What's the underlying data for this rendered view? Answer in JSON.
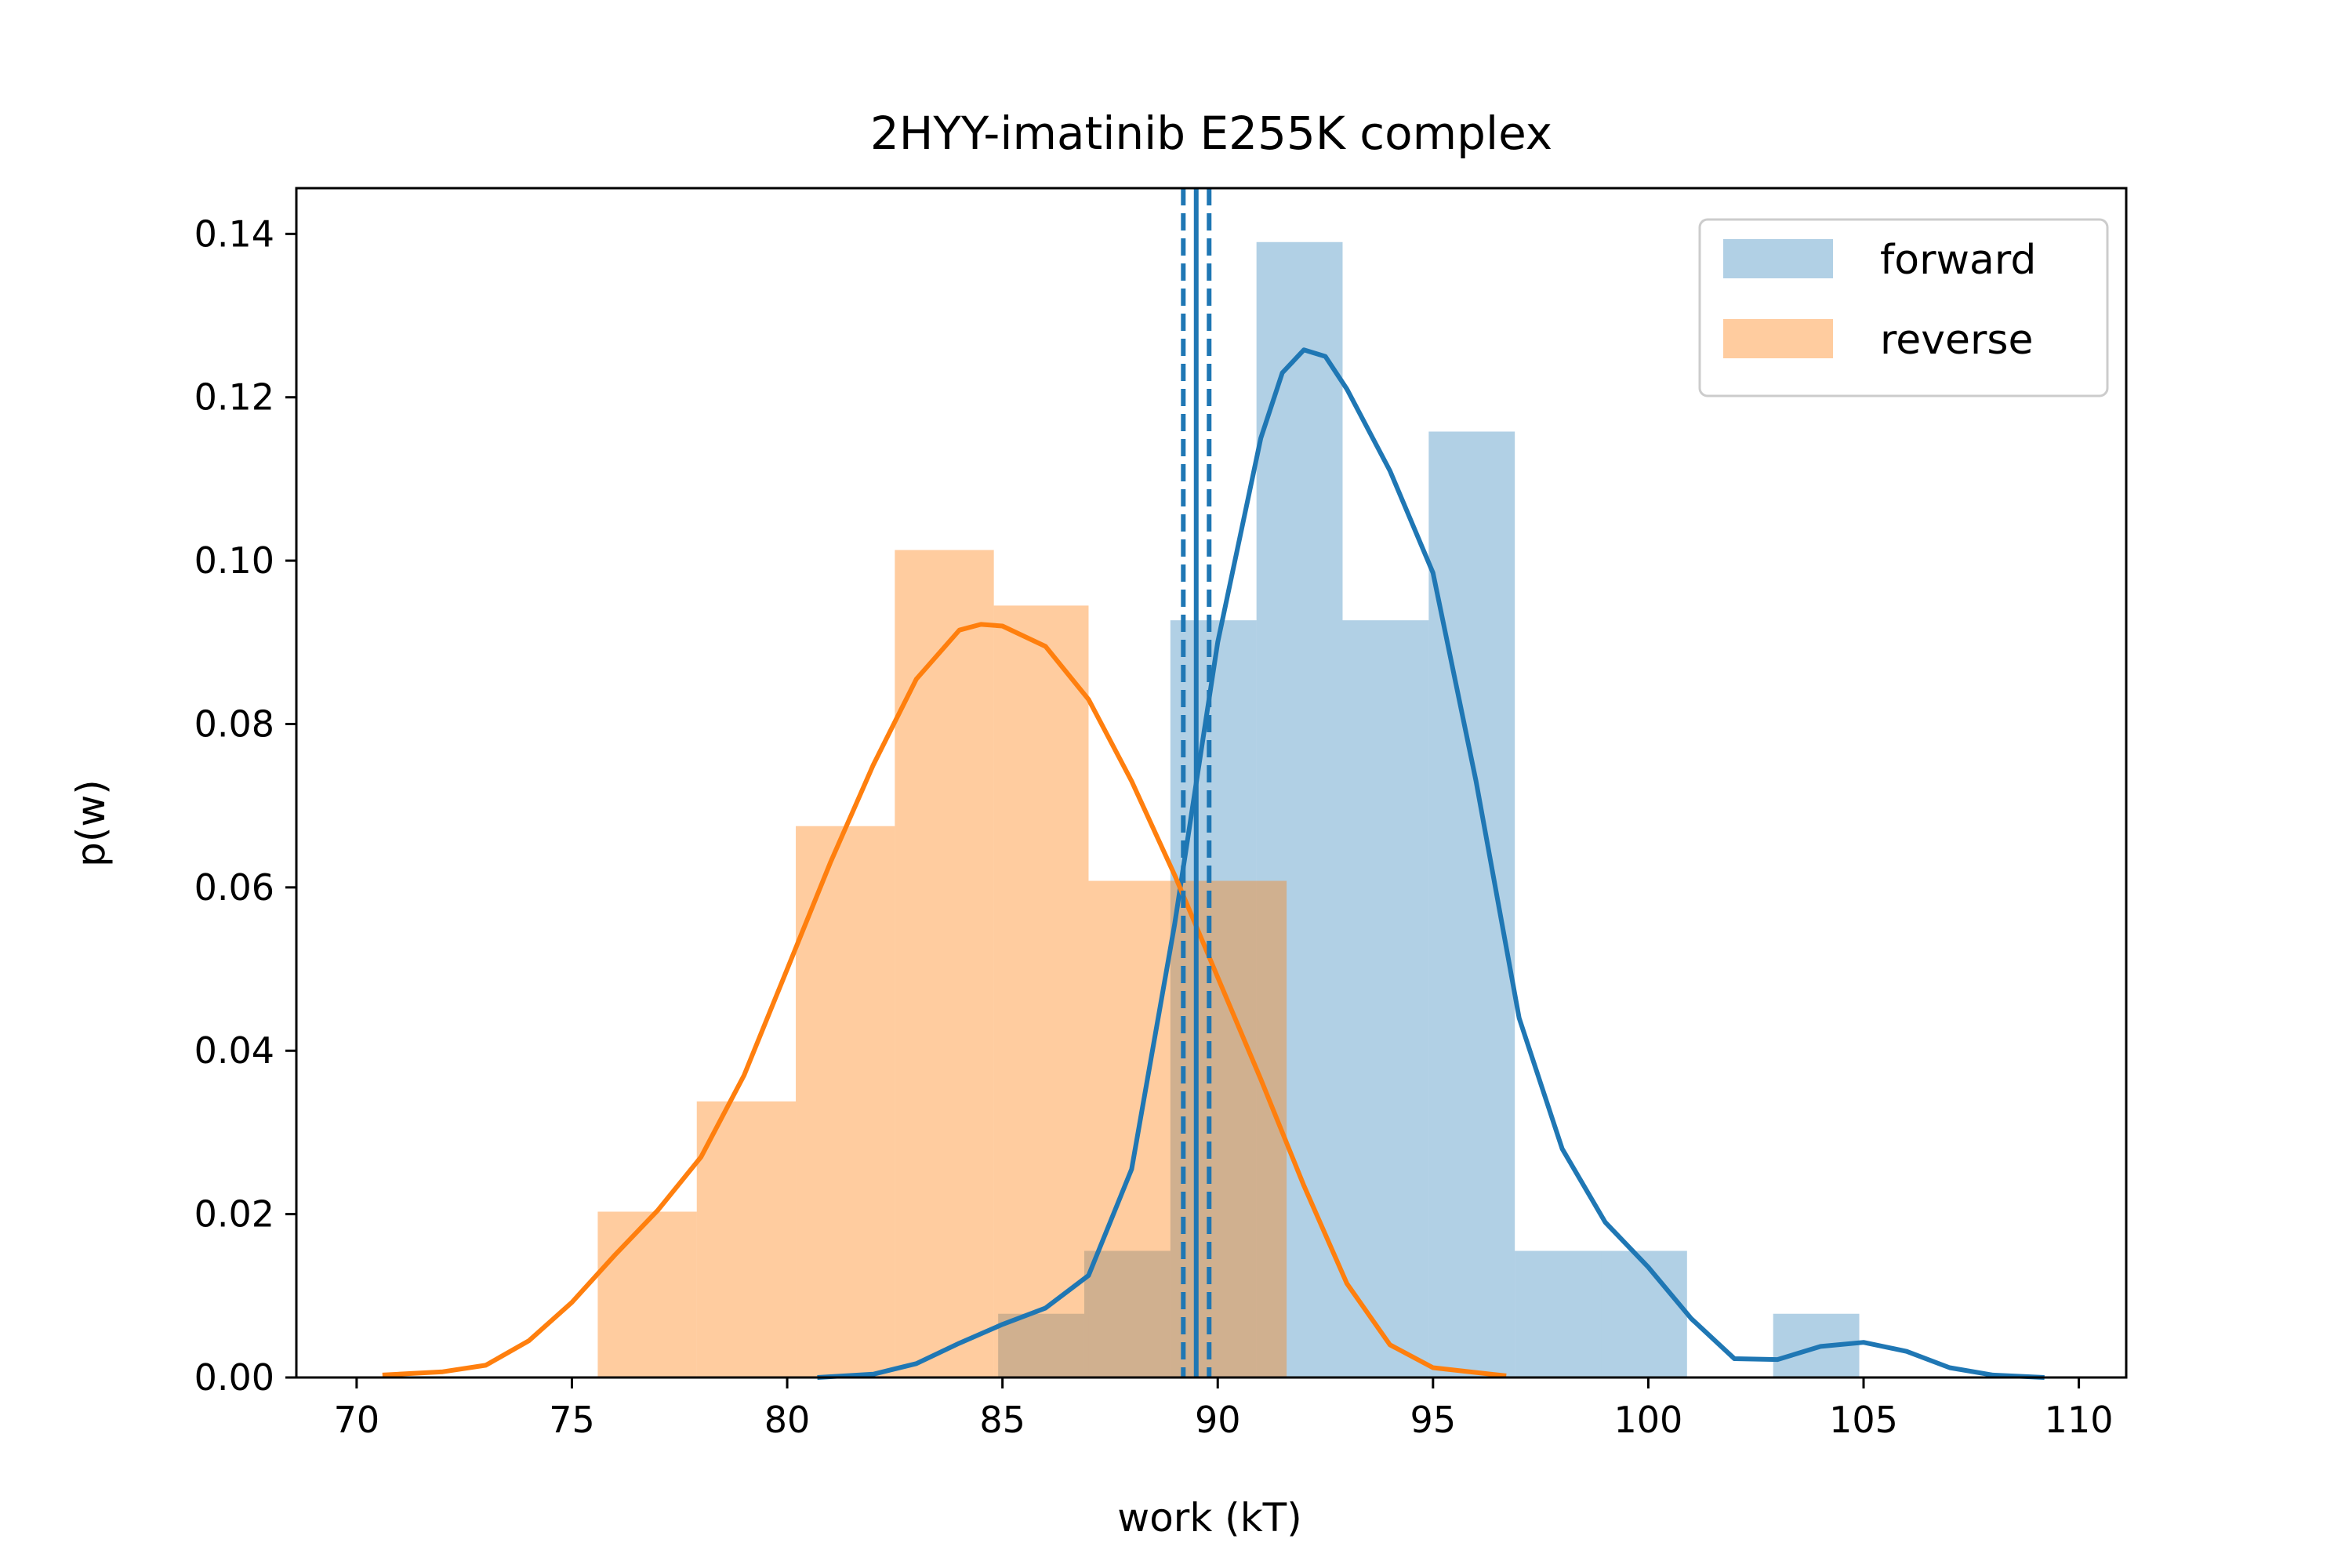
{
  "chart_data": {
    "type": "histogram_kde",
    "title": "2HYY-imatinib E255K complex",
    "xlabel": "work (kT)",
    "ylabel": "p(w)",
    "xlim": [
      68.6,
      111.1
    ],
    "ylim": [
      0,
      0.1456
    ],
    "xticks": [
      70,
      75,
      80,
      85,
      90,
      95,
      100,
      105,
      110
    ],
    "xtick_labels": [
      "70",
      "75",
      "80",
      "85",
      "90",
      "95",
      "100",
      "105",
      "110"
    ],
    "yticks": [
      0,
      0.02,
      0.04,
      0.06,
      0.08,
      0.1,
      0.12,
      0.14
    ],
    "ytick_labels": [
      "0.00",
      "0.02",
      "0.04",
      "0.06",
      "0.08",
      "0.10",
      "0.12",
      "0.14"
    ],
    "grid": false,
    "legend_position": "top-right",
    "series": [
      {
        "name": "forward",
        "color": "#1f77b4",
        "hist_alpha": 0.35,
        "bins": [
          {
            "x0": 84.9,
            "x1": 86.9,
            "value": 0.0078
          },
          {
            "x0": 86.9,
            "x1": 88.9,
            "value": 0.0155
          },
          {
            "x0": 88.9,
            "x1": 90.9,
            "value": 0.0927
          },
          {
            "x0": 90.9,
            "x1": 92.9,
            "value": 0.139
          },
          {
            "x0": 92.9,
            "x1": 94.9,
            "value": 0.0927
          },
          {
            "x0": 94.9,
            "x1": 96.9,
            "value": 0.1158
          },
          {
            "x0": 96.9,
            "x1": 98.9,
            "value": 0.0155
          },
          {
            "x0": 98.9,
            "x1": 100.9,
            "value": 0.0155
          },
          {
            "x0": 100.9,
            "x1": 102.9,
            "value": 0.0
          },
          {
            "x0": 102.9,
            "x1": 104.9,
            "value": 0.0078
          }
        ],
        "kde": [
          [
            80.7,
            0.0
          ],
          [
            82.0,
            0.0004
          ],
          [
            83.0,
            0.0017
          ],
          [
            84.0,
            0.0042
          ],
          [
            85.0,
            0.0065
          ],
          [
            86.0,
            0.0085
          ],
          [
            87.0,
            0.0125
          ],
          [
            88.0,
            0.0255
          ],
          [
            89.0,
            0.0555
          ],
          [
            90.0,
            0.09
          ],
          [
            91.0,
            0.115
          ],
          [
            91.5,
            0.123
          ],
          [
            92.0,
            0.1258
          ],
          [
            92.5,
            0.125
          ],
          [
            93.0,
            0.121
          ],
          [
            94.0,
            0.111
          ],
          [
            95.0,
            0.0985
          ],
          [
            96.0,
            0.073
          ],
          [
            97.0,
            0.044
          ],
          [
            98.0,
            0.028
          ],
          [
            99.0,
            0.019
          ],
          [
            100.0,
            0.0135
          ],
          [
            101.0,
            0.0072
          ],
          [
            102.0,
            0.0023
          ],
          [
            103.0,
            0.0022
          ],
          [
            104.0,
            0.0038
          ],
          [
            105.0,
            0.0043
          ],
          [
            106.0,
            0.0032
          ],
          [
            107.0,
            0.0012
          ],
          [
            108.0,
            0.0003
          ],
          [
            109.2,
            0.0
          ]
        ]
      },
      {
        "name": "reverse",
        "color": "#ff7f0e",
        "hist_alpha": 0.4,
        "bins": [
          {
            "x0": 75.6,
            "x1": 77.9,
            "value": 0.0203
          },
          {
            "x0": 77.9,
            "x1": 80.2,
            "value": 0.0338
          },
          {
            "x0": 80.2,
            "x1": 82.5,
            "value": 0.0675
          },
          {
            "x0": 82.5,
            "x1": 84.8,
            "value": 0.1013
          },
          {
            "x0": 84.8,
            "x1": 87.0,
            "value": 0.0945
          },
          {
            "x0": 87.0,
            "x1": 89.3,
            "value": 0.0608
          },
          {
            "x0": 89.3,
            "x1": 91.6,
            "value": 0.0608
          }
        ],
        "kde": [
          [
            70.6,
            0.0003
          ],
          [
            72.0,
            0.0007
          ],
          [
            73.0,
            0.0015
          ],
          [
            74.0,
            0.0045
          ],
          [
            75.0,
            0.0092
          ],
          [
            76.0,
            0.015
          ],
          [
            77.0,
            0.0205
          ],
          [
            78.0,
            0.027
          ],
          [
            79.0,
            0.037
          ],
          [
            80.0,
            0.05
          ],
          [
            81.0,
            0.063
          ],
          [
            82.0,
            0.075
          ],
          [
            83.0,
            0.0855
          ],
          [
            84.0,
            0.0915
          ],
          [
            84.5,
            0.0922
          ],
          [
            85.0,
            0.092
          ],
          [
            86.0,
            0.0895
          ],
          [
            87.0,
            0.083
          ],
          [
            88.0,
            0.073
          ],
          [
            89.0,
            0.0615
          ],
          [
            90.0,
            0.049
          ],
          [
            91.0,
            0.0365
          ],
          [
            92.0,
            0.0235
          ],
          [
            93.0,
            0.0115
          ],
          [
            94.0,
            0.004
          ],
          [
            95.0,
            0.0012
          ],
          [
            96.7,
            0.0002
          ]
        ]
      }
    ],
    "vlines": [
      {
        "x": 89.5,
        "style": "solid",
        "color": "#1f77b4"
      },
      {
        "x": 89.2,
        "style": "dashed",
        "color": "#1f77b4"
      },
      {
        "x": 89.8,
        "style": "dashed",
        "color": "#1f77b4"
      }
    ]
  }
}
